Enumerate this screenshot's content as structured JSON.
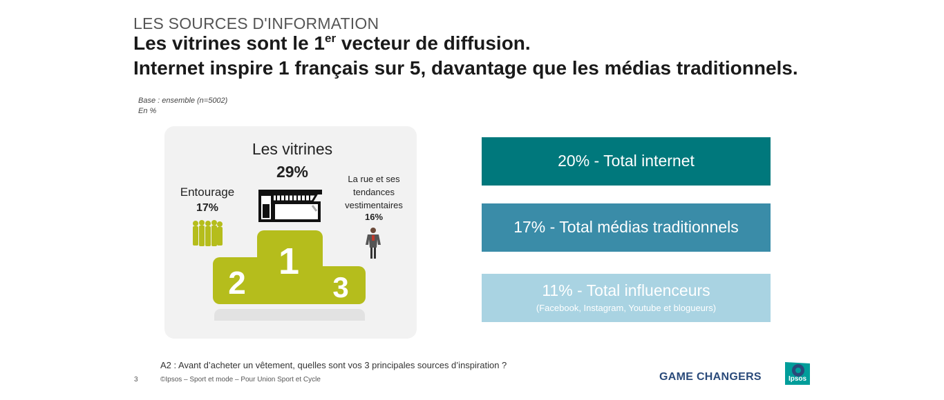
{
  "header": {
    "kicker": "LES SOURCES D'INFORMATION",
    "title_line1_pre": "Les vitrines sont le 1",
    "title_line1_sup": "er",
    "title_line1_post": " vecteur de diffusion.",
    "title_line2": "Internet inspire 1 français sur 5, davantage que les médias traditionnels."
  },
  "base": {
    "line1": "Base : ensemble (n=5002)",
    "line2": "En %"
  },
  "podium": {
    "first": {
      "label": "Les vitrines",
      "value": "29%",
      "rank": "1",
      "icon": "storefront-icon"
    },
    "second": {
      "label": "Entourage",
      "value": "17%",
      "rank": "2",
      "icon": "crowd-icon"
    },
    "third": {
      "label_line1": "La rue et ses",
      "label_line2": "tendances",
      "label_line3": "vestimentaires",
      "value": "16%",
      "rank": "3",
      "icon": "person-icon"
    }
  },
  "totals": [
    {
      "main": "20% - Total internet",
      "color": "#00787c"
    },
    {
      "main": "17% - Total médias traditionnels",
      "color": "#3a8ca8"
    },
    {
      "main": "11% - Total influenceurs",
      "sub": "(Facebook, Instagram, Youtube et blogueurs)",
      "color": "#a9d3e2"
    }
  ],
  "footer": {
    "question": "A2 : Avant d’acheter un vêtement, quelles sont vos 3 principales sources d’inspiration ?",
    "page_number": "3",
    "copyright": "©Ipsos – Sport et mode – Pour Union Sport et Cycle",
    "tagline": "GAME CHANGERS",
    "logo_text": "Ipsos"
  },
  "colors": {
    "podium": "#b5bd1c",
    "podium_shadow": "#e2e2e2",
    "logo_bg": "#009d9a"
  }
}
